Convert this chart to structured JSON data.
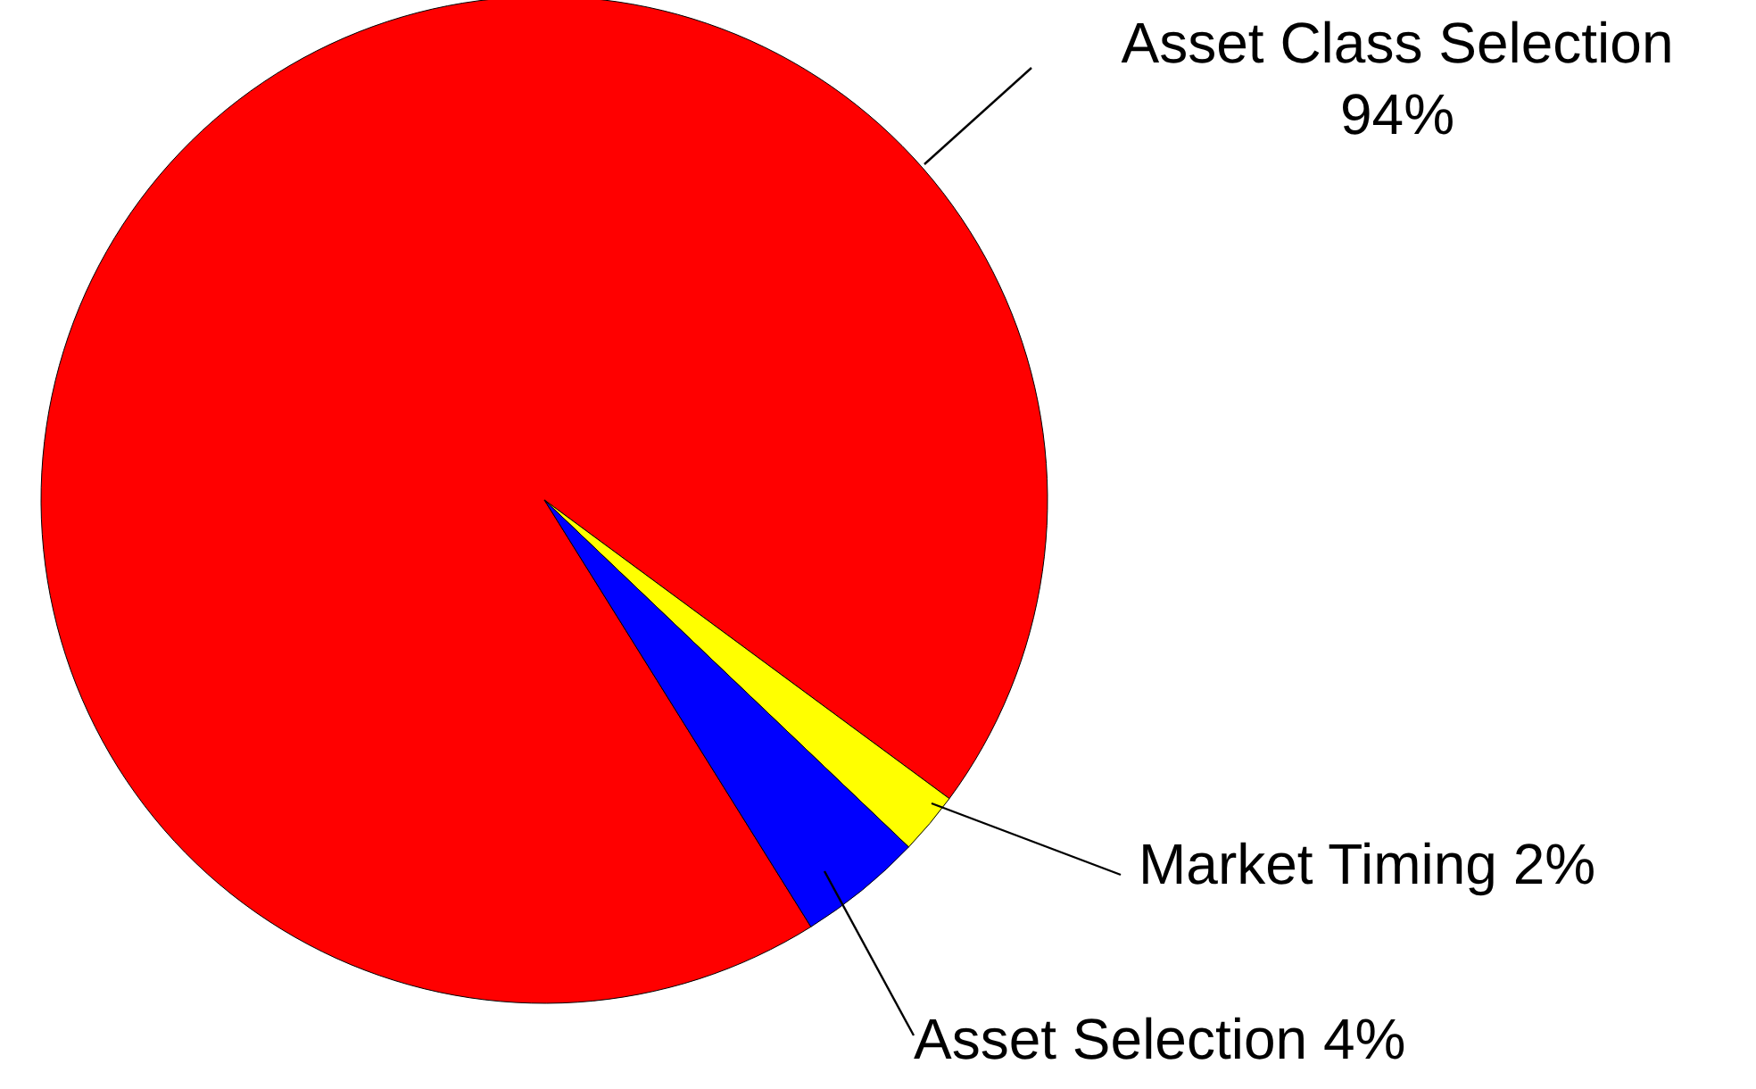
{
  "chart_data": {
    "type": "pie",
    "categories": [
      "Asset Class Selection",
      "Market Timing",
      "Asset Selection"
    ],
    "values": [
      94,
      2,
      4
    ],
    "colors": [
      "#ff0000",
      "#ffff00",
      "#0000ff"
    ],
    "value_labels": [
      "94%",
      "2%",
      "4%"
    ]
  }
}
